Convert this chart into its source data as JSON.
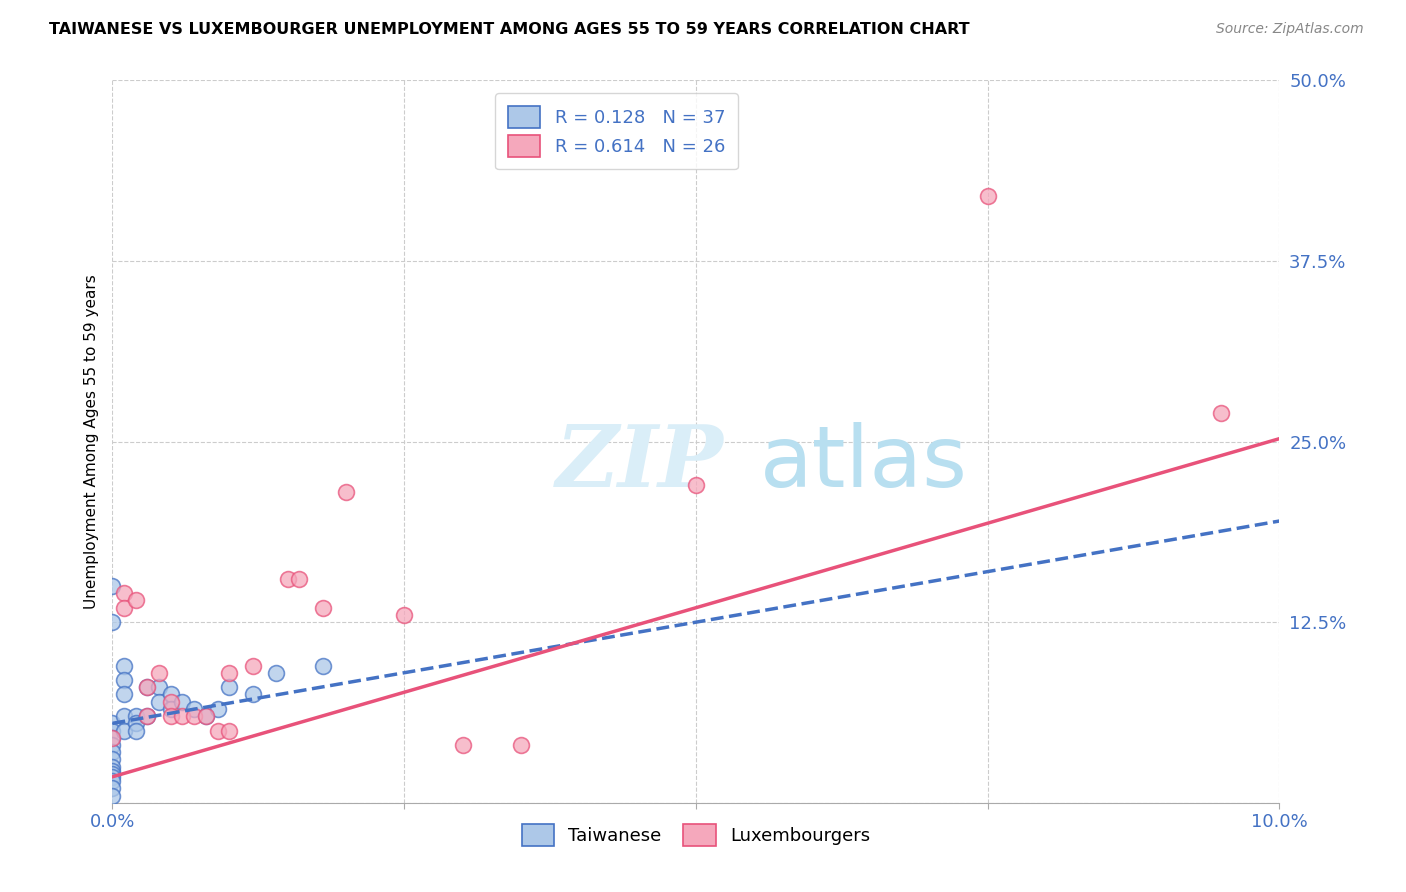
{
  "title": "TAIWANESE VS LUXEMBOURGER UNEMPLOYMENT AMONG AGES 55 TO 59 YEARS CORRELATION CHART",
  "source": "Source: ZipAtlas.com",
  "ylabel": "Unemployment Among Ages 55 to 59 years",
  "xlim": [
    0.0,
    0.1
  ],
  "ylim": [
    0.0,
    0.5
  ],
  "xtick_positions": [
    0.0,
    0.025,
    0.05,
    0.075,
    0.1
  ],
  "xtick_labels": [
    "0.0%",
    "",
    "",
    "",
    "10.0%"
  ],
  "ytick_positions": [
    0.0,
    0.125,
    0.25,
    0.375,
    0.5
  ],
  "ytick_labels": [
    "",
    "12.5%",
    "25.0%",
    "37.5%",
    "50.0%"
  ],
  "taiwanese_R": 0.128,
  "taiwanese_N": 37,
  "luxembourger_R": 0.614,
  "luxembourger_N": 26,
  "taiwanese_color": "#adc8e8",
  "luxembourger_color": "#f5a8bc",
  "taiwanese_line_color": "#4472c4",
  "luxembourger_line_color": "#e8527a",
  "background_color": "#ffffff",
  "watermark_zip": "ZIP",
  "watermark_atlas": "atlas",
  "watermark_color": "#daeef8",
  "tw_x": [
    0.0,
    0.0,
    0.0,
    0.0,
    0.0,
    0.0,
    0.0,
    0.0,
    0.0,
    0.0,
    0.0,
    0.0,
    0.0,
    0.0,
    0.0,
    0.001,
    0.001,
    0.001,
    0.001,
    0.001,
    0.002,
    0.002,
    0.002,
    0.003,
    0.003,
    0.004,
    0.004,
    0.005,
    0.005,
    0.006,
    0.007,
    0.008,
    0.009,
    0.01,
    0.012,
    0.014,
    0.018
  ],
  "tw_y": [
    0.15,
    0.125,
    0.055,
    0.05,
    0.045,
    0.04,
    0.035,
    0.03,
    0.025,
    0.022,
    0.02,
    0.018,
    0.015,
    0.01,
    0.005,
    0.095,
    0.085,
    0.075,
    0.06,
    0.05,
    0.06,
    0.055,
    0.05,
    0.08,
    0.06,
    0.08,
    0.07,
    0.075,
    0.065,
    0.07,
    0.065,
    0.06,
    0.065,
    0.08,
    0.075,
    0.09,
    0.095
  ],
  "lux_x": [
    0.0,
    0.001,
    0.001,
    0.002,
    0.003,
    0.003,
    0.004,
    0.005,
    0.005,
    0.006,
    0.007,
    0.008,
    0.009,
    0.01,
    0.01,
    0.012,
    0.015,
    0.016,
    0.018,
    0.02,
    0.025,
    0.03,
    0.035,
    0.05,
    0.075,
    0.095
  ],
  "lux_y": [
    0.045,
    0.145,
    0.135,
    0.14,
    0.08,
    0.06,
    0.09,
    0.07,
    0.06,
    0.06,
    0.06,
    0.06,
    0.05,
    0.09,
    0.05,
    0.095,
    0.155,
    0.155,
    0.135,
    0.215,
    0.13,
    0.04,
    0.04,
    0.22,
    0.42,
    0.27
  ],
  "tw_line_x0": 0.0,
  "tw_line_x1": 0.1,
  "tw_line_y0": 0.055,
  "tw_line_y1": 0.195,
  "lux_line_x0": 0.0,
  "lux_line_x1": 0.1,
  "lux_line_y0": 0.018,
  "lux_line_y1": 0.252
}
